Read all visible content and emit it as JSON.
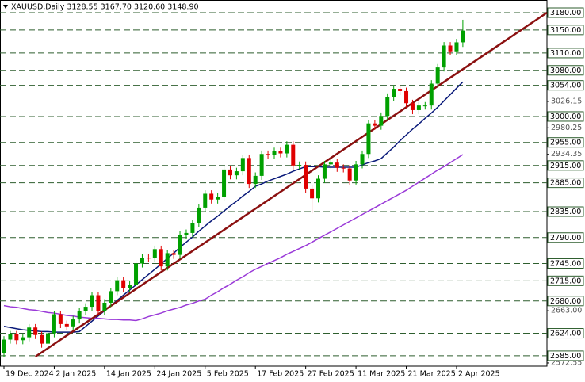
{
  "chart_data": {
    "type": "candlestick",
    "title": "XAUUSD,Daily  3128.55 3167.70 3120.60 3148.90",
    "xlim": [
      -0.63,
      86.38
    ],
    "ylim": [
      2567,
      3191
    ],
    "xticks": [
      {
        "value": 0,
        "label": "19 Dec 2024"
      },
      {
        "value": 8,
        "label": "2 Jan 2025"
      },
      {
        "value": 16,
        "label": "14 Jan 2025"
      },
      {
        "value": 24,
        "label": "24 Jan 2025"
      },
      {
        "value": 32,
        "label": "5 Feb 2025"
      },
      {
        "value": 40,
        "label": "17 Feb 2025"
      },
      {
        "value": 48,
        "label": "27 Feb 2025"
      },
      {
        "value": 56,
        "label": "11 Mar 2025"
      },
      {
        "value": 64,
        "label": "21 Mar 2025"
      },
      {
        "value": 72,
        "label": "2 Apr 2025"
      }
    ],
    "yticks": [
      3026.15,
      2980.25,
      2934.35,
      {
        "value": 2663.0,
        "label": "2663.00"
      },
      2572.55
    ],
    "up_color": "#00a000",
    "down_color": "#e00000",
    "open": [
      2590,
      2613,
      2622,
      2612,
      2617,
      2634,
      2621,
      2606,
      2624,
      2657,
      2640,
      2636,
      2648,
      2662,
      2670,
      2690,
      2663,
      2677,
      2697,
      2716,
      2703,
      2708,
      2745,
      2755,
      2754,
      2770,
      2740,
      2763,
      2760,
      2795,
      2798,
      2815,
      2842,
      2866,
      2856,
      2861,
      2908,
      2898,
      2905,
      2928,
      2883,
      2897,
      2935,
      2933,
      2940,
      2936,
      2951,
      2915,
      2916,
      2875,
      2858,
      2892,
      2917,
      2920,
      2911,
      2910,
      2889,
      2917,
      2935,
      2988,
      2984,
      3001,
      3034,
      3048,
      3044,
      3023,
      3011,
      3019,
      3019,
      3057,
      3085,
      3123,
      3113,
      3128.55
    ],
    "high": [
      2619,
      2628,
      2628,
      2623,
      2640,
      2640,
      2627,
      2630,
      2663,
      2663,
      2646,
      2654,
      2668,
      2676,
      2696,
      2696,
      2683,
      2703,
      2722,
      2722,
      2714,
      2751,
      2761,
      2761,
      2776,
      2776,
      2769,
      2769,
      2801,
      2804,
      2821,
      2848,
      2872,
      2872,
      2867,
      2914,
      2914,
      2911,
      2934,
      2934,
      2903,
      2941,
      2941,
      2946,
      2946,
      2957,
      2957,
      2922,
      2922,
      2881,
      2898,
      2923,
      2926,
      2926,
      2917,
      2916,
      2923,
      2941,
      2994,
      2994,
      3007,
      3040,
      3054,
      3054,
      3050,
      3029,
      3025,
      3025,
      3063,
      3091,
      3129,
      3129,
      3134.55,
      3167.7
    ],
    "low": [
      2583,
      2606,
      2605,
      2605,
      2610,
      2614,
      2599,
      2599,
      2617,
      2633,
      2629,
      2629,
      2641,
      2655,
      2663,
      2656,
      2656,
      2670,
      2690,
      2696,
      2696,
      2701,
      2738,
      2747,
      2747,
      2733,
      2733,
      2753,
      2753,
      2788,
      2791,
      2808,
      2835,
      2849,
      2849,
      2854,
      2891,
      2891,
      2898,
      2876,
      2876,
      2890,
      2926,
      2926,
      2929,
      2929,
      2908,
      2908,
      2868,
      2832,
      2851,
      2885,
      2910,
      2904,
      2903,
      2882,
      2882,
      2910,
      2928,
      2977,
      2977,
      2994,
      3027,
      3037,
      3016,
      3004,
      3004,
      3012,
      3012,
      3050,
      3078,
      3106,
      3106,
      3120.6
    ],
    "close": [
      2613,
      2622,
      2612,
      2617,
      2634,
      2621,
      2606,
      2624,
      2657,
      2640,
      2636,
      2648,
      2662,
      2670,
      2690,
      2663,
      2677,
      2697,
      2716,
      2703,
      2708,
      2745,
      2755,
      2754,
      2770,
      2740,
      2763,
      2760,
      2795,
      2798,
      2815,
      2842,
      2866,
      2856,
      2861,
      2908,
      2898,
      2905,
      2928,
      2883,
      2897,
      2935,
      2933,
      2940,
      2936,
      2951,
      2915,
      2916,
      2875,
      2858,
      2892,
      2917,
      2920,
      2911,
      2910,
      2889,
      2917,
      2935,
      2988,
      2984,
      3001,
      3034,
      3048,
      3044,
      3023,
      3011,
      3019,
      3019,
      3057,
      3085,
      3123,
      3113,
      3128.55,
      3148.9
    ],
    "series": [
      {
        "color": "#0a1a7a",
        "values": [
          2636,
          2634,
          2632,
          2630,
          2629,
          2628,
          2627,
          2627,
          2626,
          2626,
          2626,
          2626,
          2627,
          2636,
          2645,
          2654,
          2663,
          2672,
          2681,
          2690,
          2699,
          2708,
          2717,
          2726,
          2735,
          2744,
          2754,
          2763,
          2773,
          2782,
          2791,
          2801,
          2810,
          2819,
          2827,
          2836,
          2845,
          2853,
          2862,
          2870,
          2879,
          2883,
          2888,
          2892,
          2896,
          2900,
          2905,
          2909,
          2913,
          2913,
          2913,
          2912,
          2912,
          2912,
          2912,
          2912,
          2912,
          2916,
          2920,
          2923,
          2927,
          2937,
          2947,
          2958,
          2968,
          2978,
          2987,
          2997,
          3006,
          3016,
          3027,
          3038,
          3049,
          3060
        ]
      },
      {
        "color": "#9a3ad8",
        "values": [
          2672,
          2670,
          2669,
          2667,
          2665,
          2664,
          2662,
          2660,
          2659,
          2657,
          2655,
          2654,
          2652,
          2651,
          2650,
          2650,
          2649,
          2648,
          2648,
          2647,
          2647,
          2646,
          2649,
          2653,
          2656,
          2659,
          2663,
          2666,
          2669,
          2673,
          2676,
          2680,
          2683,
          2690,
          2696,
          2703,
          2709,
          2716,
          2722,
          2729,
          2735,
          2740,
          2745,
          2750,
          2755,
          2761,
          2766,
          2771,
          2776,
          2782,
          2788,
          2794,
          2800,
          2806,
          2812,
          2818,
          2824,
          2830,
          2836,
          2842,
          2848,
          2854,
          2860,
          2866,
          2872,
          2879,
          2886,
          2893,
          2900,
          2907,
          2913,
          2920,
          2927,
          2934
        ]
      }
    ],
    "trendline": {
      "color": "#8b1010",
      "x": [
        5,
        86.38
      ],
      "y": [
        2583.5,
        3180
      ]
    },
    "level_color": "#2e5e2e",
    "levels": [
      {
        "value": 3180,
        "label": "3180.00"
      },
      {
        "value": 3150,
        "label": "3150.00"
      },
      {
        "value": 3110,
        "label": "3110.00"
      },
      {
        "value": 3080,
        "label": "3080.00"
      },
      {
        "value": 3054,
        "label": "3054.00"
      },
      {
        "value": 3000,
        "label": "3000.00"
      },
      {
        "value": 2955,
        "label": "2955.00"
      },
      {
        "value": 2915,
        "label": "2915.00"
      },
      {
        "value": 2885,
        "label": "2885.00"
      },
      {
        "value": 2835,
        "label": "2835.00"
      },
      {
        "value": 2790,
        "label": "2790.00"
      },
      {
        "value": 2745,
        "label": "2745.00"
      },
      {
        "value": 2715,
        "label": "2715.00"
      },
      {
        "value": 2680,
        "label": "2680.00"
      },
      {
        "value": 2624,
        "label": "2624.00"
      },
      {
        "value": 2585,
        "label": "2585.00"
      }
    ]
  }
}
